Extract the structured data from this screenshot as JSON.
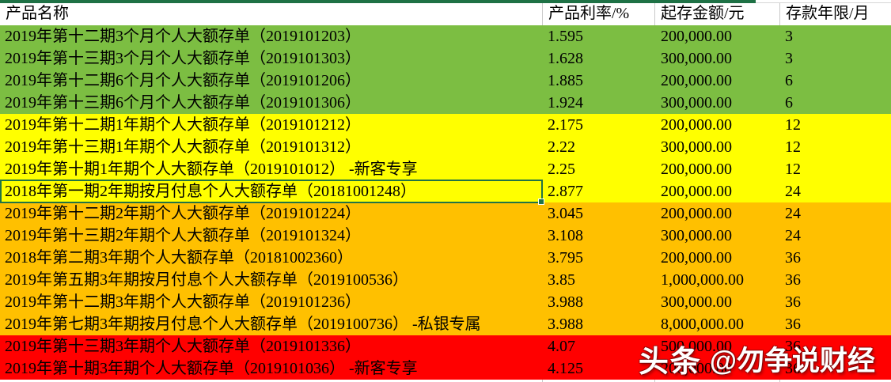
{
  "header": {
    "columns": [
      {
        "label": "产品名称"
      },
      {
        "label": "产品利率/%"
      },
      {
        "label": "起存金额/元"
      },
      {
        "label": "存款年限/月"
      }
    ]
  },
  "table": {
    "rows": [
      {
        "name": "2019年第十二期3个月个人大额存单（2019101203）",
        "rate": "1.595",
        "amount": "200,000.00",
        "term": "3",
        "group": "green"
      },
      {
        "name": "2019年第十三期3个月个人大额存单（2019101303）",
        "rate": "1.628",
        "amount": "300,000.00",
        "term": "3",
        "group": "green"
      },
      {
        "name": "2019年第十二期6个月个人大额存单（2019101206）",
        "rate": "1.885",
        "amount": "200,000.00",
        "term": "6",
        "group": "green"
      },
      {
        "name": "2019年第十三期6个月个人大额存单（2019101306）",
        "rate": "1.924",
        "amount": "300,000.00",
        "term": "6",
        "group": "green"
      },
      {
        "name": "2019年第十二期1年期个人大额存单（2019101212）",
        "rate": "2.175",
        "amount": "200,000.00",
        "term": "12",
        "group": "yellow"
      },
      {
        "name": "2019年第十三期1年期个人大额存单（2019101312）",
        "rate": "2.22",
        "amount": "300,000.00",
        "term": "12",
        "group": "yellow"
      },
      {
        "name": "2019年第十期1年期个人大额存单（2019101012） -新客专享",
        "rate": "2.25",
        "amount": "200,000.00",
        "term": "12",
        "group": "yellow"
      },
      {
        "name": "2018年第一期2年期按月付息个人大额存单（20181001248）",
        "rate": "2.877",
        "amount": "200,000.00",
        "term": "24",
        "group": "yellow"
      },
      {
        "name": "2019年第十二期2年期个人大额存单（2019101224）",
        "rate": "3.045",
        "amount": "200,000.00",
        "term": "24",
        "group": "orange"
      },
      {
        "name": "2019年第十三期2年期个人大额存单（2019101324）",
        "rate": "3.108",
        "amount": "300,000.00",
        "term": "24",
        "group": "orange"
      },
      {
        "name": "2018年第二期3年期个人大额存单（20181002360）",
        "rate": "3.795",
        "amount": "200,000.00",
        "term": "36",
        "group": "orange"
      },
      {
        "name": "2019年第五期3年期按月付息个人大额存单（2019100536）",
        "rate": "3.85",
        "amount": "1,000,000.00",
        "term": "36",
        "group": "orange"
      },
      {
        "name": "2019年第十二期3年期个人大额存单（2019101236）",
        "rate": "3.988",
        "amount": "300,000.00",
        "term": "36",
        "group": "orange"
      },
      {
        "name": "2019年第七期3年期按月付息个人大额存单（2019100736） -私银专属",
        "rate": "3.988",
        "amount": "8,000,000.00",
        "term": "36",
        "group": "orange"
      },
      {
        "name": "2019年第十三期3年期个人大额存单（2019101336）",
        "rate": "4.07",
        "amount": "500,000.00",
        "term": "36",
        "group": "red"
      },
      {
        "name": "2019年第十期3年期个人大额存单（2019101036） -新客专享",
        "rate": "4.125",
        "amount": "200,000.00",
        "term": "36",
        "group": "red"
      }
    ]
  },
  "selection": {
    "row_index": 7,
    "column": "name"
  },
  "colors": {
    "green": "#7CBE42",
    "yellow": "#FFFF00",
    "orange": "#FFC000",
    "red": "#FF0000",
    "top_strip": "#1E7145",
    "selection_border": "#217346",
    "gridline": "#C9C9C9"
  },
  "watermark": {
    "brand": "头条",
    "handle": "@勿争说财经"
  }
}
